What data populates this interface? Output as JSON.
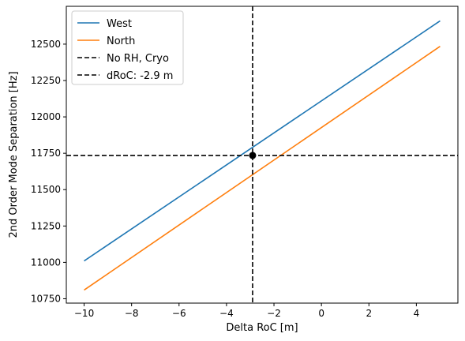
{
  "chart_data": {
    "type": "line",
    "xlabel": "Delta RoC [m]",
    "ylabel": "2nd Order Mode Separation [Hz]",
    "xlim": [
      -10.75,
      5.75
    ],
    "ylim": [
      10720,
      12760
    ],
    "xticks": [
      -10,
      -8,
      -6,
      -4,
      -2,
      0,
      2,
      4
    ],
    "yticks": [
      10750,
      11000,
      11250,
      11500,
      11750,
      12000,
      12250,
      12500
    ],
    "xtick_labels": [
      "−10",
      "−8",
      "−6",
      "−4",
      "−2",
      "0",
      "2",
      "4"
    ],
    "ytick_labels": [
      "10750",
      "11000",
      "11250",
      "11500",
      "11750",
      "12000",
      "12250",
      "12500"
    ],
    "series": [
      {
        "name": "West",
        "color": "#1f77b4",
        "x": [
          -10,
          5
        ],
        "y": [
          11010,
          12660
        ]
      },
      {
        "name": "North",
        "color": "#ff7f0e",
        "x": [
          -10,
          5
        ],
        "y": [
          10810,
          12485
        ]
      }
    ],
    "reference_lines": [
      {
        "name": "No RH, Cryo",
        "orientation": "horizontal",
        "value": 11735,
        "color": "#000000",
        "style": "dashed"
      },
      {
        "name": "dRoC: -2.9 m",
        "orientation": "vertical",
        "value": -2.9,
        "color": "#000000",
        "style": "dashed"
      }
    ],
    "marker": {
      "x": -2.9,
      "y": 11735,
      "color": "#000000"
    },
    "legend": {
      "placement": "top-left",
      "entries": [
        "West",
        "North",
        "No RH, Cryo",
        "dRoC: -2.9 m"
      ]
    },
    "grid": false
  }
}
